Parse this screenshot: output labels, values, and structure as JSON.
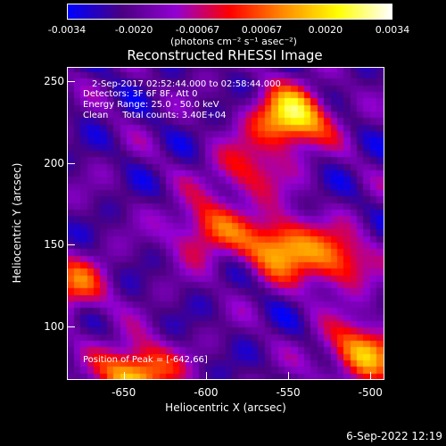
{
  "chart_data": {
    "type": "heatmap",
    "title": "Reconstructed RHESSI Image",
    "xlabel": "Heliocentric X (arcsec)",
    "ylabel": "Heliocentric Y (arcsec)",
    "xlim": [
      -684,
      -492
    ],
    "ylim": [
      68,
      258
    ],
    "x_ticks": [
      "-650",
      "-600",
      "-550",
      "-500"
    ],
    "x_tick_values": [
      -650,
      -600,
      -550,
      -500
    ],
    "y_ticks": [
      "250",
      "200",
      "150",
      "100"
    ],
    "y_tick_values": [
      250,
      200,
      150,
      100
    ],
    "colorbar": {
      "ticks": [
        "-0.0034",
        "-0.0020",
        "-0.00067",
        "0.00067",
        "0.0020",
        "0.0034"
      ],
      "tick_values": [
        -0.0034,
        -0.002,
        -0.00067,
        0.00067,
        0.002,
        0.0034
      ],
      "units": "(photons cm⁻² s⁻¹ asec⁻²)",
      "range": [
        -0.0034,
        0.0034
      ],
      "colormap": [
        "#0000ff",
        "#4b0082",
        "#9400d3",
        "#ff0000",
        "#ff8c00",
        "#ffff00",
        "#ffffff"
      ]
    },
    "sources": [
      {
        "x": -548,
        "y": 228,
        "amplitude": 1.0
      },
      {
        "x": -600,
        "y": 160,
        "amplitude": 0.55
      },
      {
        "x": -555,
        "y": 150,
        "amplitude": 0.8
      },
      {
        "x": -520,
        "y": 140,
        "amplitude": 0.6
      },
      {
        "x": -642,
        "y": 72,
        "amplitude": 0.9
      },
      {
        "x": -505,
        "y": 85,
        "amplitude": 0.75
      },
      {
        "x": -682,
        "y": 125,
        "amplitude": 0.55
      },
      {
        "x": -575,
        "y": 195,
        "amplitude": 0.45
      }
    ],
    "annotations": {
      "time_range": "2-Sep-2017 02:52:44.000 to 02:58:44.000",
      "detectors": "Detectors: 3F 6F 8F, Att 0",
      "energy": "Energy Range: 25.0 - 50.0 keV",
      "clean": "Clean     Total counts: 3.40E+04",
      "peak": "Position of Peak = [-642,66]"
    }
  },
  "timestamp": "6-Sep-2022 12:19"
}
